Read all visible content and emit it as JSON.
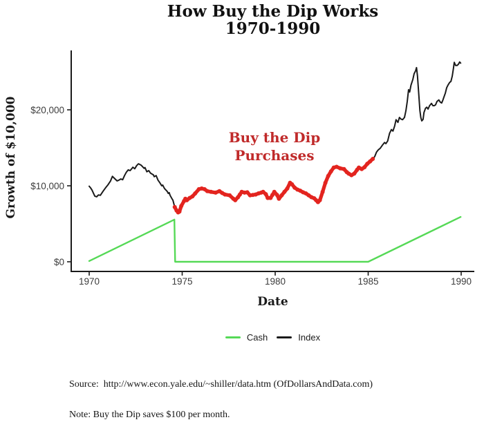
{
  "title": {
    "line1": "How Buy the Dip Works",
    "line2": "1970-1990"
  },
  "annotation": {
    "line1": "Buy the Dip",
    "line2": "Purchases"
  },
  "axes": {
    "y_label": "Growth of $10,000",
    "x_label": "Date",
    "y_ticks": [
      {
        "label": "$20,000",
        "value": 20000
      },
      {
        "label": "$10,000",
        "value": 10000
      },
      {
        "label": "$0",
        "value": 0
      }
    ],
    "x_ticks": [
      {
        "label": "1970",
        "value": 1970
      },
      {
        "label": "1975",
        "value": 1975
      },
      {
        "label": "1980",
        "value": 1980
      },
      {
        "label": "1985",
        "value": 1985
      },
      {
        "label": "1990",
        "value": 1990
      }
    ]
  },
  "legend": [
    {
      "label": "Cash",
      "color": "#55d956"
    },
    {
      "label": "Index",
      "color": "#1a1a1a"
    }
  ],
  "footer": {
    "source": "Source:  http://www.econ.yale.edu/~shiller/data.htm (OfDollarsAndData.com)",
    "note": "Note: Buy the Dip saves $100 per month."
  },
  "colors": {
    "cash": "#55d956",
    "index": "#1a1a1a",
    "purchase_markers": "#e3241f",
    "annotation_text": "#c02a2a"
  },
  "chart_data": {
    "type": "line",
    "title": "How Buy the Dip Works 1970-1990",
    "xlabel": "Date",
    "ylabel": "Growth of $10,000",
    "xlim": [
      1969.5,
      1990.7
    ],
    "ylim": [
      0,
      27500
    ],
    "grid": false,
    "legend_position": "bottom",
    "series": [
      {
        "name": "Cash",
        "color": "#55d956",
        "points": [
          [
            1970.0,
            100
          ],
          [
            1974.58,
            5550
          ],
          [
            1974.62,
            0
          ],
          [
            1985.0,
            0
          ],
          [
            1989.97,
            5900
          ]
        ]
      },
      {
        "name": "Index",
        "color": "#1a1a1a",
        "points": [
          [
            1970.0,
            9950
          ],
          [
            1970.08,
            9700
          ],
          [
            1970.15,
            9450
          ],
          [
            1970.3,
            8650
          ],
          [
            1970.4,
            8550
          ],
          [
            1970.5,
            8800
          ],
          [
            1970.6,
            8750
          ],
          [
            1970.75,
            9300
          ],
          [
            1970.9,
            9800
          ],
          [
            1971.0,
            10100
          ],
          [
            1971.15,
            10650
          ],
          [
            1971.25,
            11250
          ],
          [
            1971.35,
            11000
          ],
          [
            1971.5,
            10650
          ],
          [
            1971.6,
            10750
          ],
          [
            1971.7,
            10900
          ],
          [
            1971.8,
            10800
          ],
          [
            1971.9,
            11350
          ],
          [
            1972.0,
            11800
          ],
          [
            1972.1,
            12100
          ],
          [
            1972.2,
            12000
          ],
          [
            1972.35,
            12450
          ],
          [
            1972.45,
            12250
          ],
          [
            1972.55,
            12650
          ],
          [
            1972.65,
            12900
          ],
          [
            1972.8,
            12700
          ],
          [
            1972.95,
            12300
          ],
          [
            1973.0,
            12400
          ],
          [
            1973.1,
            11850
          ],
          [
            1973.2,
            12000
          ],
          [
            1973.3,
            11650
          ],
          [
            1973.45,
            11450
          ],
          [
            1973.5,
            11200
          ],
          [
            1973.6,
            11350
          ],
          [
            1973.7,
            10750
          ],
          [
            1973.8,
            10400
          ],
          [
            1973.9,
            10000
          ],
          [
            1973.95,
            10100
          ],
          [
            1974.05,
            9650
          ],
          [
            1974.2,
            9250
          ],
          [
            1974.25,
            9000
          ],
          [
            1974.3,
            9100
          ],
          [
            1974.35,
            8750
          ],
          [
            1974.45,
            8300
          ],
          [
            1974.5,
            8100
          ],
          [
            1974.6,
            7200
          ],
          [
            1974.7,
            6750
          ],
          [
            1974.78,
            6500
          ],
          [
            1974.85,
            6600
          ],
          [
            1974.95,
            7350
          ],
          [
            1975.1,
            8000
          ],
          [
            1975.17,
            8300
          ],
          [
            1975.25,
            8100
          ],
          [
            1975.4,
            8400
          ],
          [
            1975.55,
            8600
          ],
          [
            1975.7,
            9000
          ],
          [
            1975.9,
            9550
          ],
          [
            1976.05,
            9650
          ],
          [
            1976.2,
            9550
          ],
          [
            1976.35,
            9300
          ],
          [
            1976.55,
            9200
          ],
          [
            1976.8,
            9100
          ],
          [
            1977.0,
            9300
          ],
          [
            1977.15,
            9050
          ],
          [
            1977.3,
            8850
          ],
          [
            1977.55,
            8750
          ],
          [
            1977.75,
            8300
          ],
          [
            1977.85,
            8100
          ],
          [
            1978.0,
            8500
          ],
          [
            1978.1,
            8850
          ],
          [
            1978.2,
            9200
          ],
          [
            1978.35,
            9100
          ],
          [
            1978.5,
            9150
          ],
          [
            1978.65,
            8750
          ],
          [
            1978.8,
            8800
          ],
          [
            1978.95,
            8850
          ],
          [
            1979.1,
            9000
          ],
          [
            1979.25,
            9100
          ],
          [
            1979.35,
            9200
          ],
          [
            1979.5,
            8900
          ],
          [
            1979.6,
            8400
          ],
          [
            1979.75,
            8400
          ],
          [
            1979.85,
            8800
          ],
          [
            1979.95,
            9200
          ],
          [
            1980.1,
            8800
          ],
          [
            1980.2,
            8300
          ],
          [
            1980.35,
            8750
          ],
          [
            1980.5,
            9200
          ],
          [
            1980.65,
            9650
          ],
          [
            1980.8,
            10400
          ],
          [
            1980.9,
            10200
          ],
          [
            1981.05,
            9750
          ],
          [
            1981.2,
            9500
          ],
          [
            1981.35,
            9350
          ],
          [
            1981.5,
            9150
          ],
          [
            1981.65,
            9000
          ],
          [
            1981.8,
            8750
          ],
          [
            1981.95,
            8500
          ],
          [
            1982.1,
            8350
          ],
          [
            1982.2,
            8100
          ],
          [
            1982.3,
            7850
          ],
          [
            1982.4,
            8100
          ],
          [
            1982.55,
            9200
          ],
          [
            1982.7,
            10400
          ],
          [
            1982.85,
            11300
          ],
          [
            1983.0,
            11900
          ],
          [
            1983.15,
            12400
          ],
          [
            1983.3,
            12500
          ],
          [
            1983.5,
            12300
          ],
          [
            1983.7,
            12200
          ],
          [
            1983.85,
            11800
          ],
          [
            1983.95,
            11600
          ],
          [
            1984.1,
            11400
          ],
          [
            1984.25,
            11600
          ],
          [
            1984.4,
            12100
          ],
          [
            1984.5,
            12400
          ],
          [
            1984.65,
            12200
          ],
          [
            1984.8,
            12450
          ],
          [
            1984.95,
            12900
          ],
          [
            1985.1,
            13200
          ],
          [
            1985.25,
            13550
          ],
          [
            1985.35,
            13850
          ],
          [
            1985.45,
            14450
          ],
          [
            1985.55,
            14750
          ],
          [
            1985.65,
            14950
          ],
          [
            1985.78,
            15400
          ],
          [
            1985.88,
            15700
          ],
          [
            1985.95,
            15550
          ],
          [
            1986.05,
            15900
          ],
          [
            1986.15,
            16900
          ],
          [
            1986.25,
            17400
          ],
          [
            1986.33,
            17200
          ],
          [
            1986.42,
            17850
          ],
          [
            1986.5,
            18700
          ],
          [
            1986.6,
            18350
          ],
          [
            1986.68,
            19000
          ],
          [
            1986.75,
            18800
          ],
          [
            1986.85,
            18700
          ],
          [
            1986.95,
            19000
          ],
          [
            1987.03,
            19900
          ],
          [
            1987.1,
            21100
          ],
          [
            1987.17,
            22650
          ],
          [
            1987.23,
            22350
          ],
          [
            1987.3,
            23250
          ],
          [
            1987.4,
            24000
          ],
          [
            1987.47,
            24750
          ],
          [
            1987.55,
            25150
          ],
          [
            1987.6,
            25550
          ],
          [
            1987.65,
            24450
          ],
          [
            1987.72,
            22000
          ],
          [
            1987.78,
            19900
          ],
          [
            1987.83,
            19000
          ],
          [
            1987.88,
            18550
          ],
          [
            1987.95,
            18750
          ],
          [
            1988.0,
            19650
          ],
          [
            1988.08,
            20200
          ],
          [
            1988.15,
            20350
          ],
          [
            1988.22,
            20100
          ],
          [
            1988.3,
            20550
          ],
          [
            1988.4,
            20850
          ],
          [
            1988.48,
            20550
          ],
          [
            1988.55,
            20550
          ],
          [
            1988.62,
            20650
          ],
          [
            1988.7,
            21100
          ],
          [
            1988.8,
            21300
          ],
          [
            1988.88,
            21000
          ],
          [
            1988.95,
            20900
          ],
          [
            1989.02,
            21300
          ],
          [
            1989.08,
            21750
          ],
          [
            1989.15,
            22200
          ],
          [
            1989.22,
            22900
          ],
          [
            1989.3,
            23300
          ],
          [
            1989.38,
            23600
          ],
          [
            1989.45,
            23750
          ],
          [
            1989.52,
            24450
          ],
          [
            1989.58,
            25400
          ],
          [
            1989.63,
            26250
          ],
          [
            1989.7,
            25850
          ],
          [
            1989.78,
            25850
          ],
          [
            1989.85,
            26000
          ],
          [
            1989.92,
            26300
          ],
          [
            1989.97,
            26150
          ]
        ]
      }
    ],
    "highlight": {
      "name": "Buy the Dip Purchases",
      "color": "#e3241f",
      "applies_to": "Index",
      "x_range": [
        1974.58,
        1985.28
      ]
    }
  }
}
